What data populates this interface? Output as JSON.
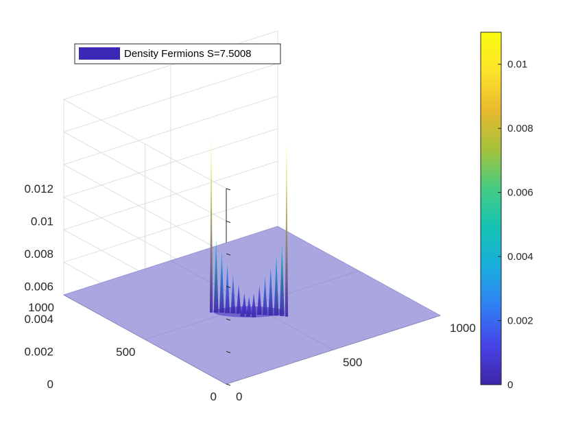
{
  "chart_data": {
    "type": "surface3d",
    "title": "",
    "xlabel": "",
    "ylabel": "",
    "zlabel": "",
    "xlim": [
      0,
      1000
    ],
    "ylim": [
      0,
      1000
    ],
    "zlim": [
      0,
      0.012
    ],
    "x_ticks": [
      "0",
      "500",
      "1000"
    ],
    "y_ticks": [
      "0",
      "500",
      "1000"
    ],
    "z_ticks": [
      "0",
      "0.002",
      "0.004",
      "0.006",
      "0.008",
      "0.01",
      "0.012"
    ],
    "grid": true,
    "legend": {
      "placement": "top-left",
      "entries": [
        "Density Fermions S=7.5008"
      ]
    },
    "colorbar": {
      "placement": "right",
      "range": [
        0,
        0.011
      ],
      "ticks": [
        "0",
        "0.002",
        "0.004",
        "0.006",
        "0.008",
        "0.01"
      ],
      "colormap": [
        "#3e26a8",
        "#4743e6",
        "#2f7ff4",
        "#1aaddd",
        "#14c2b3",
        "#43cc84",
        "#a4c23a",
        "#e8b92f",
        "#fde32a",
        "#f9fb0e"
      ]
    },
    "surface_color": "#aaa7e0",
    "peaks": [
      {
        "x": 540,
        "y": 340,
        "z": 0.0108
      },
      {
        "x": 340,
        "y": 540,
        "z": 0.0108
      },
      {
        "x": 530,
        "y": 355,
        "z": 0.0045
      },
      {
        "x": 355,
        "y": 530,
        "z": 0.0045
      },
      {
        "x": 515,
        "y": 370,
        "z": 0.0038
      },
      {
        "x": 370,
        "y": 515,
        "z": 0.0038
      },
      {
        "x": 500,
        "y": 385,
        "z": 0.003
      },
      {
        "x": 385,
        "y": 500,
        "z": 0.003
      },
      {
        "x": 485,
        "y": 400,
        "z": 0.0024
      },
      {
        "x": 400,
        "y": 485,
        "z": 0.0024
      },
      {
        "x": 470,
        "y": 415,
        "z": 0.0018
      },
      {
        "x": 415,
        "y": 470,
        "z": 0.0018
      },
      {
        "x": 455,
        "y": 430,
        "z": 0.0013
      },
      {
        "x": 430,
        "y": 455,
        "z": 0.0013
      },
      {
        "x": 442,
        "y": 442,
        "z": 0.0011
      },
      {
        "x": 425,
        "y": 425,
        "z": 0.0008
      },
      {
        "x": 410,
        "y": 440,
        "z": 0.0007
      },
      {
        "x": 440,
        "y": 410,
        "z": 0.0007
      }
    ]
  }
}
